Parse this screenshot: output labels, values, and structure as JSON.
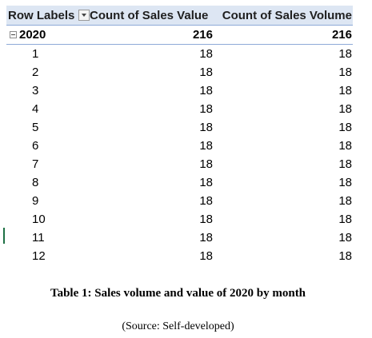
{
  "pivot": {
    "headers": {
      "row_labels": "Row Labels",
      "value_col": "Count of Sales Value",
      "volume_col": "Count of Sales Volume"
    },
    "year_row": {
      "label": "2020",
      "value": "216",
      "volume": "216"
    },
    "rows": [
      {
        "label": "1",
        "value": "18",
        "volume": "18"
      },
      {
        "label": "2",
        "value": "18",
        "volume": "18"
      },
      {
        "label": "3",
        "value": "18",
        "volume": "18"
      },
      {
        "label": "4",
        "value": "18",
        "volume": "18"
      },
      {
        "label": "5",
        "value": "18",
        "volume": "18"
      },
      {
        "label": "6",
        "value": "18",
        "volume": "18"
      },
      {
        "label": "7",
        "value": "18",
        "volume": "18"
      },
      {
        "label": "8",
        "value": "18",
        "volume": "18"
      },
      {
        "label": "9",
        "value": "18",
        "volume": "18"
      },
      {
        "label": "10",
        "value": "18",
        "volume": "18"
      },
      {
        "label": "11",
        "value": "18",
        "volume": "18"
      },
      {
        "label": "12",
        "value": "18",
        "volume": "18"
      }
    ]
  },
  "caption": "Table 1: Sales volume and value of 2020 by month",
  "source": "(Source: Self-developed)",
  "colors": {
    "header_bg": "#dde6f3",
    "header_border": "#8ea9d8",
    "marker": "#1e7145"
  },
  "icons": {
    "filter": "filter-dropdown-icon",
    "collapse": "collapse-minus-icon"
  }
}
